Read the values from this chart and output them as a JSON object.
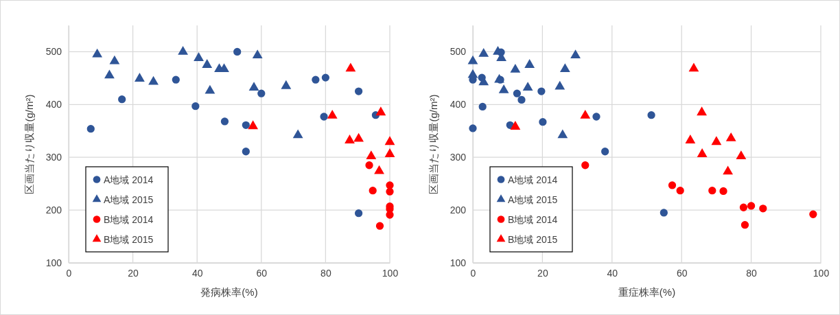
{
  "chart_data": [
    {
      "type": "scatter",
      "xlabel": "発病株率(%)",
      "ylabel": "区画当たり収量(g/m²)",
      "xlim": [
        0,
        100
      ],
      "xticks": [
        0,
        20,
        40,
        60,
        80,
        100
      ],
      "ylim": [
        100,
        550
      ],
      "yticks": [
        100,
        200,
        300,
        400,
        500
      ],
      "grid": true,
      "legend": "bottom left",
      "series": [
        {
          "name": "A地域 2014",
          "color": "#2f5597",
          "marker": "circle",
          "x": [
            6.9,
            16.6,
            33.4,
            39.5,
            48.6,
            52.5,
            55.2,
            55.2,
            60,
            76.9,
            80,
            90.3,
            79.5,
            95.6,
            90.3
          ],
          "values": [
            354,
            410,
            447,
            397,
            368,
            500,
            361,
            311,
            421,
            447,
            451,
            425,
            377,
            380,
            194
          ]
        },
        {
          "name": "A地域 2015",
          "color": "#2f5597",
          "marker": "triangle",
          "x": [
            8.9,
            14.3,
            12.7,
            22.1,
            26.4,
            35.6,
            40.5,
            43.1,
            46.9,
            48.4,
            44,
            58.8,
            57.7,
            67.7,
            71.4
          ],
          "values": [
            495,
            482,
            455,
            449,
            443,
            500,
            488,
            475,
            467,
            467,
            426,
            493,
            432,
            435,
            342
          ]
        },
        {
          "name": "B地域 2014",
          "color": "#ff0000",
          "marker": "circle",
          "x": [
            93.6,
            94.7,
            100,
            100,
            100,
            100,
            100,
            96.9
          ],
          "values": [
            285,
            237,
            247,
            235,
            207,
            202,
            191,
            170
          ]
        },
        {
          "name": "B地域 2015",
          "color": "#ff0000",
          "marker": "triangle",
          "x": [
            87.8,
            57.4,
            82.1,
            97.2,
            87.5,
            90.3,
            100,
            100,
            94.2,
            96.7
          ],
          "values": [
            468,
            359,
            379,
            385,
            332,
            335,
            329,
            306,
            302,
            274
          ]
        }
      ]
    },
    {
      "type": "scatter",
      "xlabel": "重症株率(%)",
      "ylabel": "区画当たり収量(g/m²)",
      "xlim": [
        0,
        100
      ],
      "xticks": [
        0,
        20,
        40,
        60,
        80,
        100
      ],
      "ylim": [
        100,
        550
      ],
      "yticks": [
        100,
        200,
        300,
        400,
        500
      ],
      "grid": true,
      "legend": "bottom left",
      "series": [
        {
          "name": "A地域 2014",
          "color": "#2f5597",
          "marker": "circle",
          "x": [
            8.1,
            2.6,
            0,
            7.9,
            12.7,
            14,
            19.7,
            2.8,
            0,
            10.7,
            20.1,
            35.5,
            38,
            51.3,
            54.9
          ],
          "values": [
            499,
            451,
            447,
            447,
            421,
            409,
            425,
            396,
            355,
            361,
            367,
            377,
            311,
            380,
            195
          ]
        },
        {
          "name": "A地域 2015",
          "color": "#2f5597",
          "marker": "triangle",
          "x": [
            0,
            0,
            3.1,
            7.2,
            8.2,
            3.1,
            7.6,
            12.2,
            16.3,
            8.9,
            15.8,
            26.5,
            29.5,
            25,
            25.8
          ],
          "values": [
            482,
            456,
            496,
            500,
            488,
            442,
            447,
            466,
            475,
            427,
            432,
            467,
            493,
            434,
            342
          ]
        },
        {
          "name": "B地域 2014",
          "color": "#ff0000",
          "marker": "circle",
          "x": [
            32.3,
            57.3,
            59.6,
            68.8,
            72,
            77.8,
            80,
            83.4,
            97.8,
            78.2
          ],
          "values": [
            285,
            247,
            237,
            237,
            236,
            205,
            208,
            203,
            192,
            172
          ]
        },
        {
          "name": "B地域 2015",
          "color": "#ff0000",
          "marker": "triangle",
          "x": [
            12.2,
            32.3,
            63.5,
            65.8,
            62.5,
            70,
            74.2,
            65.9,
            77.1,
            73.3
          ],
          "values": [
            358,
            379,
            468,
            385,
            332,
            329,
            336,
            306,
            302,
            273
          ]
        }
      ]
    }
  ]
}
